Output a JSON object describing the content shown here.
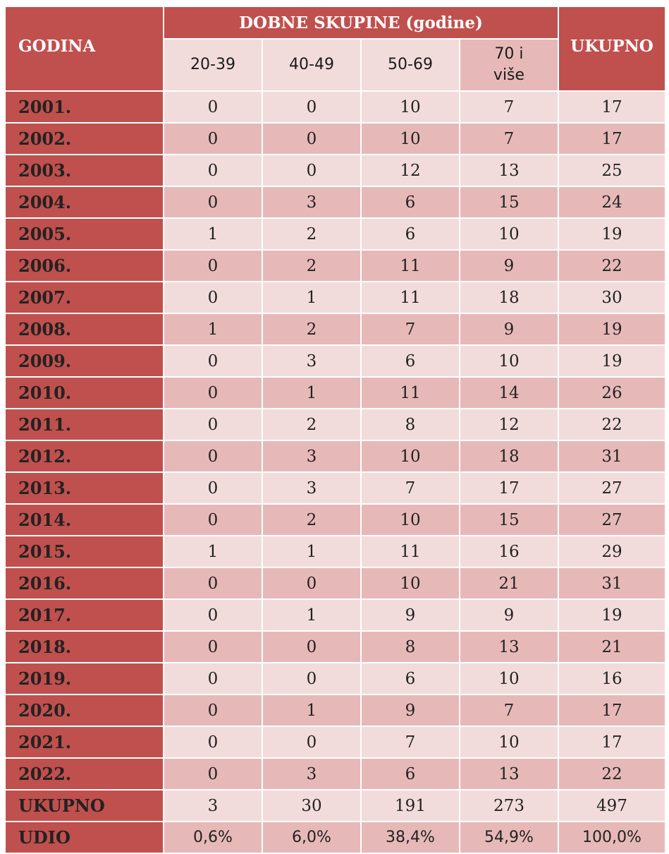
{
  "header": {
    "godina": "GODINA",
    "group": "DOBNE SKUPINE (godine)",
    "ukupno": "UKUPNO",
    "age_groups": [
      "20-39",
      "40-49",
      "50-69",
      "70 i više"
    ]
  },
  "rows": [
    {
      "year": "2001.",
      "v": [
        "0",
        "0",
        "10",
        "7",
        "17"
      ]
    },
    {
      "year": "2002.",
      "v": [
        "0",
        "0",
        "10",
        "7",
        "17"
      ]
    },
    {
      "year": "2003.",
      "v": [
        "0",
        "0",
        "12",
        "13",
        "25"
      ]
    },
    {
      "year": "2004.",
      "v": [
        "0",
        "3",
        "6",
        "15",
        "24"
      ]
    },
    {
      "year": "2005.",
      "v": [
        "1",
        "2",
        "6",
        "10",
        "19"
      ]
    },
    {
      "year": "2006.",
      "v": [
        "0",
        "2",
        "11",
        "9",
        "22"
      ]
    },
    {
      "year": "2007.",
      "v": [
        "0",
        "1",
        "11",
        "18",
        "30"
      ]
    },
    {
      "year": "2008.",
      "v": [
        "1",
        "2",
        "7",
        "9",
        "19"
      ]
    },
    {
      "year": "2009.",
      "v": [
        "0",
        "3",
        "6",
        "10",
        "19"
      ]
    },
    {
      "year": "2010.",
      "v": [
        "0",
        "1",
        "11",
        "14",
        "26"
      ]
    },
    {
      "year": "2011.",
      "v": [
        "0",
        "2",
        "8",
        "12",
        "22"
      ]
    },
    {
      "year": "2012.",
      "v": [
        "0",
        "3",
        "10",
        "18",
        "31"
      ]
    },
    {
      "year": "2013.",
      "v": [
        "0",
        "3",
        "7",
        "17",
        "27"
      ]
    },
    {
      "year": "2014.",
      "v": [
        "0",
        "2",
        "10",
        "15",
        "27"
      ]
    },
    {
      "year": "2015.",
      "v": [
        "1",
        "1",
        "11",
        "16",
        "29"
      ]
    },
    {
      "year": "2016.",
      "v": [
        "0",
        "0",
        "10",
        "21",
        "31"
      ]
    },
    {
      "year": "2017.",
      "v": [
        "0",
        "1",
        "9",
        "9",
        "19"
      ]
    },
    {
      "year": "2018.",
      "v": [
        "0",
        "0",
        "8",
        "13",
        "21"
      ]
    },
    {
      "year": "2019.",
      "v": [
        "0",
        "0",
        "6",
        "10",
        "16"
      ]
    },
    {
      "year": "2020.",
      "v": [
        "0",
        "1",
        "9",
        "7",
        "17"
      ]
    },
    {
      "year": "2021.",
      "v": [
        "0",
        "0",
        "7",
        "10",
        "17"
      ]
    },
    {
      "year": "2022.",
      "v": [
        "0",
        "3",
        "6",
        "13",
        "22"
      ]
    },
    {
      "year": "UKUPNO",
      "v": [
        "3",
        "30",
        "191",
        "273",
        "497"
      ]
    },
    {
      "year": "UDIO",
      "v": [
        "0,6%",
        "6,0%",
        "38,4%",
        "54,9%",
        "100,0%"
      ],
      "pct": true
    }
  ],
  "colors": {
    "header_red": "#c0504d",
    "row_light": "#f2dcdb",
    "row_dark": "#e6b9b8"
  }
}
